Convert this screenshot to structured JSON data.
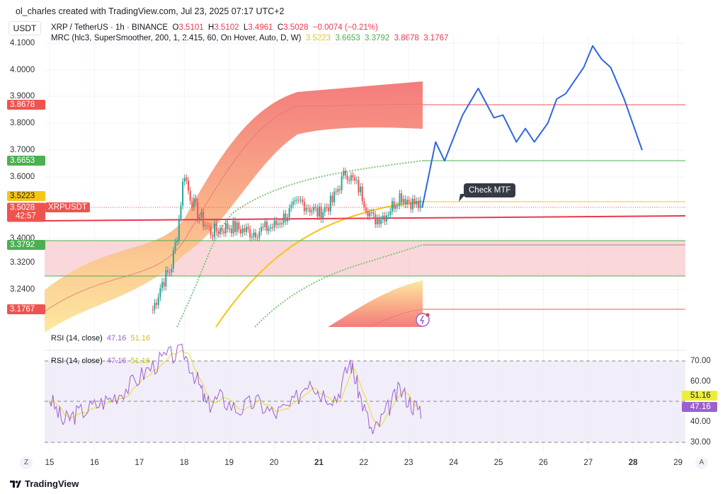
{
  "header": {
    "credit": "ol_charles created with TradingView.com, Jul 23, 2025 07:17 UTC+2",
    "currency": "USDT",
    "symbol": "XRP / TetherUS · 1h · BINANCE",
    "o_label": "O",
    "o": "3.5101",
    "h_label": "H",
    "h": "3.5102",
    "l_label": "L",
    "l": "3.4961",
    "c_label": "C",
    "c": "3.5028",
    "change": "−0.0074 (−0.21%)",
    "indicator": "MRC (hlc3, SuperSmoother, 200, 1, 2.415, 60, On Hover, Auto, D, W)",
    "ind_values": [
      "3.5223",
      "3.6653",
      "3.3792",
      "3.8678",
      "3.1767"
    ]
  },
  "price_axis": {
    "ticks": [
      "4.1000",
      "4.0000",
      "3.9000",
      "3.8000",
      "3.7000",
      "3.6000",
      "3.4000",
      "3.3200",
      "3.2400"
    ],
    "tags": {
      "upper_outer": "3.8678",
      "upper_inner": "3.6653",
      "mean": "3.5223",
      "last": "3.5028",
      "countdown": "42:57",
      "lower_inner": "3.3792",
      "lower_outer": "3.1767"
    },
    "symbol_tag": "XRPUSDT"
  },
  "annotation": "Check MTF",
  "rsi": {
    "label": "RSI (14, close)",
    "value": "47.16",
    "ma": "51.16",
    "ticks": [
      "70.00",
      "60.00",
      "40.00",
      "30.00"
    ]
  },
  "x_axis": {
    "labels": [
      "15",
      "16",
      "17",
      "18",
      "19",
      "20",
      "21",
      "22",
      "23",
      "24",
      "25",
      "26",
      "27",
      "28",
      "29"
    ],
    "bold": [
      "21",
      "28"
    ]
  },
  "footer": {
    "brand": "TradingView"
  },
  "corner": {
    "left": "Z",
    "right": "A"
  },
  "colors": {
    "up": "#26a69a",
    "down": "#ef5350",
    "projection": "#2f66e0",
    "mean": "#f5c518",
    "rsi": "#9c5fd0",
    "rsi_ma": "#e6e04a"
  },
  "chart_data": {
    "type": "candlestick",
    "xlabel": "",
    "ylabel": "",
    "price_path": [
      [
        17.3,
        3.18
      ],
      [
        17.5,
        3.26
      ],
      [
        17.7,
        3.3
      ],
      [
        17.85,
        3.42
      ],
      [
        18.0,
        3.62
      ],
      [
        18.1,
        3.55
      ],
      [
        18.3,
        3.48
      ],
      [
        18.6,
        3.42
      ],
      [
        19.0,
        3.44
      ],
      [
        19.5,
        3.42
      ],
      [
        20.0,
        3.44
      ],
      [
        20.3,
        3.48
      ],
      [
        20.6,
        3.52
      ],
      [
        21.0,
        3.48
      ],
      [
        21.3,
        3.52
      ],
      [
        21.6,
        3.62
      ],
      [
        21.9,
        3.56
      ],
      [
        22.2,
        3.46
      ],
      [
        22.5,
        3.48
      ],
      [
        22.8,
        3.54
      ],
      [
        23.3,
        3.5
      ]
    ],
    "projection": [
      [
        23.3,
        3.5
      ],
      [
        23.6,
        3.73
      ],
      [
        23.8,
        3.66
      ],
      [
        24.2,
        3.83
      ],
      [
        24.55,
        3.93
      ],
      [
        24.9,
        3.82
      ],
      [
        25.1,
        3.83
      ],
      [
        25.4,
        3.73
      ],
      [
        25.6,
        3.78
      ],
      [
        25.8,
        3.73
      ],
      [
        26.1,
        3.8
      ],
      [
        26.3,
        3.89
      ],
      [
        26.5,
        3.91
      ],
      [
        26.9,
        4.01
      ],
      [
        27.1,
        4.09
      ],
      [
        27.3,
        4.04
      ],
      [
        27.5,
        4.01
      ],
      [
        27.8,
        3.89
      ],
      [
        28.2,
        3.7
      ]
    ],
    "levels": {
      "upper_outer": 3.8678,
      "upper_inner": 3.6653,
      "mean": 3.5223,
      "lower_inner": 3.3792,
      "lower_outer": 3.1767,
      "support_zone": [
        3.28,
        3.3792
      ],
      "trendline": [
        3.46,
        3.48
      ]
    },
    "rsi": [
      [
        15,
        52
      ],
      [
        15.3,
        40
      ],
      [
        15.6,
        44
      ],
      [
        16,
        48
      ],
      [
        16.4,
        52
      ],
      [
        16.8,
        58
      ],
      [
        17.2,
        66
      ],
      [
        17.6,
        72
      ],
      [
        18,
        74
      ],
      [
        18.3,
        60
      ],
      [
        18.5,
        48
      ],
      [
        18.8,
        52
      ],
      [
        19.2,
        46
      ],
      [
        19.6,
        50
      ],
      [
        20,
        44
      ],
      [
        20.4,
        48
      ],
      [
        20.8,
        62
      ],
      [
        21,
        55
      ],
      [
        21.4,
        52
      ],
      [
        21.7,
        70
      ],
      [
        21.9,
        54
      ],
      [
        22.2,
        34
      ],
      [
        22.5,
        45
      ],
      [
        22.8,
        56
      ],
      [
        23.1,
        48
      ],
      [
        23.3,
        46
      ]
    ],
    "rsi_ylim": [
      25,
      75
    ]
  }
}
